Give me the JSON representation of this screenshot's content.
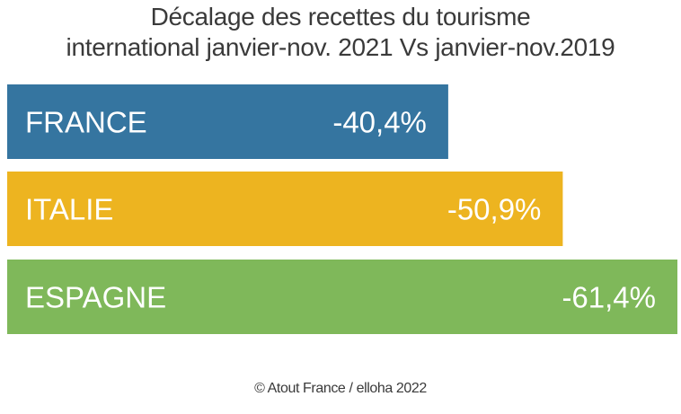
{
  "title_line1": "Décalage des recettes du tourisme",
  "title_line2": "international janvier-nov. 2021 Vs janvier-nov.2019",
  "source": "© Atout France / elloha 2022",
  "chart_data": {
    "type": "bar",
    "orientation": "horizontal",
    "title": "Décalage des recettes du tourisme international janvier-nov. 2021 Vs janvier-nov.2019",
    "categories": [
      "FRANCE",
      "ITALIE",
      "ESPAGNE"
    ],
    "values": [
      -40.4,
      -50.9,
      -61.4
    ],
    "value_labels": [
      "-40,4%",
      "-50,9%",
      "-61,4%"
    ],
    "colors": [
      "#3575a0",
      "#edb420",
      "#7fb85a"
    ],
    "unit": "%",
    "grid": false,
    "legend": "none"
  }
}
